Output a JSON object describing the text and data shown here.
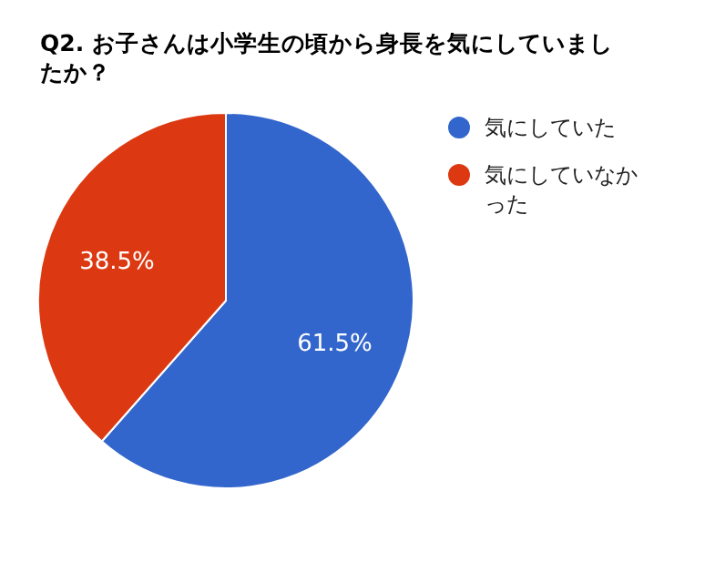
{
  "chart_data": {
    "type": "pie",
    "title": "Q2. お子さんは小学生の頃から身長を気にしていましたか？",
    "categories": [
      "気にしていた",
      "気にしていなかった"
    ],
    "values": [
      61.5,
      38.5
    ],
    "colors": [
      "#3366cc",
      "#dc3912"
    ],
    "value_labels": [
      "61.5%",
      "38.5%"
    ],
    "legend": "top right"
  }
}
